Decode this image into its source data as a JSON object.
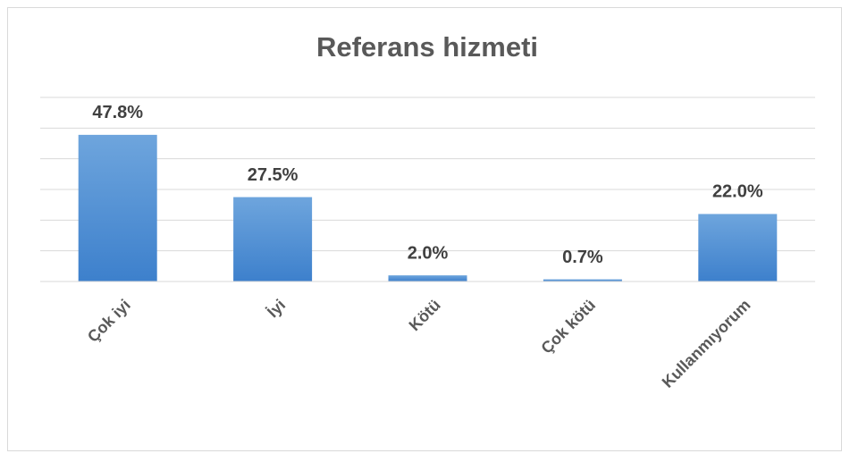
{
  "chart_data": {
    "type": "bar",
    "title": "Referans hizmeti",
    "categories": [
      "Çok iyi",
      "İyi",
      "Kötü",
      "Çok kötü",
      "Kullanmıyorum"
    ],
    "values": [
      47.8,
      27.5,
      2.0,
      0.7,
      22.0
    ],
    "value_labels": [
      "47.8%",
      "27.5%",
      "2.0%",
      "0.7%",
      "22.0%"
    ],
    "color": "#5b9bd5",
    "ylim": [
      0,
      60
    ],
    "yticks": [
      0,
      10,
      20,
      30,
      40,
      50,
      60
    ],
    "grid": true
  }
}
